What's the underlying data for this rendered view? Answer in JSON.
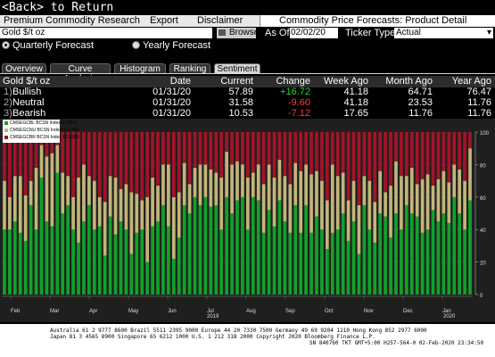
{
  "nav": {
    "back_label": "<Back> to Return"
  },
  "menu": {
    "items": [
      "Premium Commodity Research",
      "Export",
      "Disclaimer"
    ],
    "title": "Commodity Price Forecasts: Product Detail"
  },
  "controls": {
    "ticker_value": "Gold $/t oz",
    "browse_label": "Browse",
    "as_of_label": "As Of",
    "as_of_value": "02/02/20",
    "ticker_type_label": "Ticker Type",
    "ticker_type_value": "Actual"
  },
  "forecast": {
    "quarterly_label": "Quarterly Forecast",
    "yearly_label": "Yearly Forecast",
    "selected": "quarterly"
  },
  "tabs": [
    "Overview",
    "Curve Analysis",
    "Histogram",
    "Ranking",
    "Sentiment"
  ],
  "active_tab": "Sentiment",
  "table": {
    "headers": [
      "Gold $/t oz",
      "Date",
      "Current",
      "Change",
      "Week Ago",
      "Month Ago",
      "Year Ago"
    ],
    "rows": [
      {
        "idx": "1)",
        "name": "Bullish",
        "date": "01/31/20",
        "current": "57.89",
        "change": "+16.72",
        "week": "41.18",
        "month": "64.71",
        "year": "76.47"
      },
      {
        "idx": "2)",
        "name": "Neutral",
        "date": "01/31/20",
        "current": "31.58",
        "change": "-9.60",
        "week": "41.18",
        "month": "23.53",
        "year": "11.76"
      },
      {
        "idx": "3)",
        "name": "Bearish",
        "date": "01/31/20",
        "current": "10.53",
        "change": "-7.12",
        "week": "17.65",
        "month": "11.76",
        "year": "11.76"
      }
    ]
  },
  "colors": {
    "bullish": "#12a12a",
    "neutral": "#c2b57a",
    "bearish": "#a3132a",
    "positive": "#2bd12b",
    "negative": "#ff3b3b"
  },
  "chart_data": {
    "type": "bar",
    "stacked": true,
    "legend": [
      {
        "label": "CMSEGCBL BCSN Index 57.8947",
        "color": "#12a12a"
      },
      {
        "label": "CMSEGCNU BCSN Index 31.5789",
        "color": "#c2b57a"
      },
      {
        "label": "CMSEGCBR BCSN Index 10.5263",
        "color": "#a3132a"
      }
    ],
    "ylim": [
      0,
      100
    ],
    "yticks": [
      0,
      20,
      40,
      60,
      80,
      100
    ],
    "x_month_labels": [
      "Feb",
      "Mar",
      "Apr",
      "May",
      "Jun",
      "Jul",
      "Aug",
      "Sep",
      "Oct",
      "Nov",
      "Dec",
      "Jan"
    ],
    "x_year_labels": [
      "2019",
      "2020"
    ],
    "series": [
      {
        "name": "Bullish",
        "values": [
          40,
          40,
          45,
          38,
          33,
          55,
          40,
          72,
          45,
          42,
          75,
          50,
          55,
          40,
          32,
          45,
          55,
          40,
          42,
          24,
          48,
          37,
          45,
          40,
          25,
          38,
          40,
          20,
          42,
          45,
          55,
          42,
          22,
          35,
          55,
          50,
          60,
          55,
          60,
          54,
          55,
          40,
          60,
          50,
          58,
          60,
          40,
          60,
          58,
          38,
          52,
          42,
          58,
          45,
          38,
          55,
          38,
          55,
          38,
          48,
          40,
          28,
          38,
          40,
          50,
          33,
          45,
          25,
          55,
          40,
          32,
          50,
          48,
          35,
          50,
          40,
          55,
          50,
          48,
          38,
          40,
          52,
          45,
          50,
          44,
          60,
          50,
          40,
          58
        ]
      },
      {
        "name": "Neutral",
        "values": [
          30,
          20,
          28,
          35,
          28,
          15,
          38,
          20,
          40,
          45,
          17,
          25,
          18,
          20,
          40,
          35,
          18,
          30,
          18,
          33,
          25,
          35,
          20,
          28,
          38,
          24,
          18,
          40,
          30,
          22,
          25,
          38,
          38,
          28,
          26,
          18,
          18,
          25,
          20,
          23,
          20,
          32,
          28,
          30,
          24,
          20,
          32,
          15,
          22,
          30,
          28,
          30,
          25,
          28,
          30,
          26,
          38,
          25,
          36,
          28,
          30,
          30,
          42,
          33,
          25,
          25,
          25,
          30,
          18,
          30,
          25,
          26,
          15,
          32,
          32,
          33,
          18,
          28,
          20,
          33,
          34,
          15,
          26,
          26,
          25,
          20,
          27,
          30,
          32
        ]
      },
      {
        "name": "Bearish",
        "values": [
          30,
          40,
          27,
          27,
          39,
          30,
          22,
          8,
          15,
          13,
          8,
          25,
          27,
          40,
          28,
          20,
          27,
          30,
          40,
          43,
          27,
          28,
          35,
          32,
          37,
          38,
          42,
          40,
          28,
          33,
          20,
          20,
          40,
          37,
          19,
          32,
          22,
          20,
          20,
          23,
          25,
          28,
          12,
          20,
          18,
          20,
          28,
          25,
          20,
          32,
          20,
          28,
          17,
          27,
          32,
          19,
          24,
          20,
          26,
          24,
          30,
          42,
          20,
          27,
          25,
          42,
          30,
          45,
          27,
          30,
          43,
          24,
          37,
          33,
          18,
          27,
          27,
          22,
          32,
          29,
          26,
          33,
          29,
          24,
          31,
          20,
          23,
          30,
          10
        ]
      }
    ]
  },
  "footer": {
    "line1": "Australia 61 2 9777 8600 Brazil 5511 2395 9000 Europe 44 20 7330 7500 Germany 49 69 9204 1210 Hong Kong 852 2977 6000",
    "line2": "Japan 81 3 4565 8900        Singapore 65 6212 1000          U.S. 1 212 318 2000           Copyright 2020 Bloomberg Finance L.P.",
    "line3": "SN 840760 TKT  GMT+5:00 H257-564-0 02-Feb-2020 23:34:50"
  }
}
